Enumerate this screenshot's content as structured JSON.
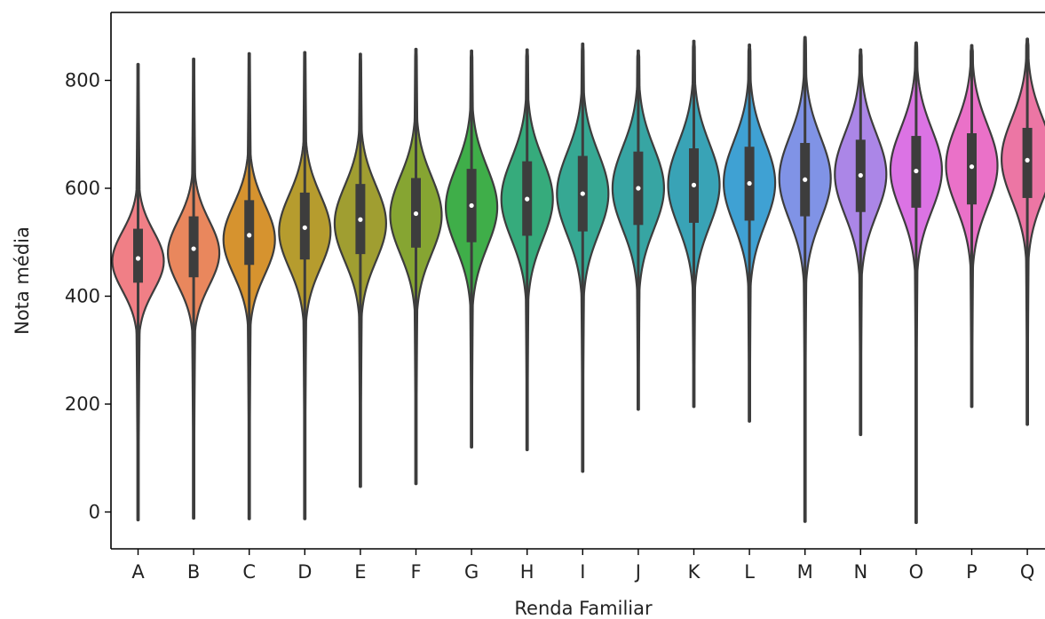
{
  "chart_data": {
    "type": "violin",
    "xlabel": "Renda Familiar",
    "ylabel": "Nota média",
    "ylim": [
      -70,
      920
    ],
    "yticks": [
      0,
      200,
      400,
      600,
      800
    ],
    "grid": false,
    "categories": [
      "A",
      "B",
      "C",
      "D",
      "E",
      "F",
      "G",
      "H",
      "I",
      "J",
      "K",
      "L",
      "M",
      "N",
      "O",
      "P",
      "Q"
    ],
    "colors": [
      "#f07f86",
      "#e9875d",
      "#d6932f",
      "#b69c2e",
      "#a09e31",
      "#86a532",
      "#3fae49",
      "#36ab7c",
      "#36a893",
      "#37a5a3",
      "#39a3b6",
      "#3fa1d3",
      "#8093e6",
      "#ab86e7",
      "#db73e4",
      "#ea71c8",
      "#ec76a4"
    ],
    "series": [
      {
        "name": "A",
        "min": -15,
        "q1": 425,
        "median": 470,
        "q3": 525,
        "max": 830,
        "mode": 465,
        "spread": 55
      },
      {
        "name": "B",
        "min": -12,
        "q1": 435,
        "median": 488,
        "q3": 548,
        "max": 840,
        "mode": 480,
        "spread": 60
      },
      {
        "name": "C",
        "min": -13,
        "q1": 458,
        "median": 513,
        "q3": 578,
        "max": 850,
        "mode": 505,
        "spread": 65
      },
      {
        "name": "D",
        "min": -13,
        "q1": 468,
        "median": 527,
        "q3": 592,
        "max": 852,
        "mode": 520,
        "spread": 68
      },
      {
        "name": "E",
        "min": 47,
        "q1": 478,
        "median": 542,
        "q3": 608,
        "max": 849,
        "mode": 535,
        "spread": 70
      },
      {
        "name": "F",
        "min": 52,
        "q1": 490,
        "median": 553,
        "q3": 619,
        "max": 858,
        "mode": 550,
        "spread": 72
      },
      {
        "name": "G",
        "min": 120,
        "q1": 500,
        "median": 568,
        "q3": 636,
        "max": 855,
        "mode": 565,
        "spread": 74
      },
      {
        "name": "H",
        "min": 115,
        "q1": 512,
        "median": 580,
        "q3": 650,
        "max": 857,
        "mode": 580,
        "spread": 75
      },
      {
        "name": "I",
        "min": 75,
        "q1": 520,
        "median": 590,
        "q3": 660,
        "max": 868,
        "mode": 590,
        "spread": 76
      },
      {
        "name": "J",
        "min": 190,
        "q1": 532,
        "median": 600,
        "q3": 668,
        "max": 855,
        "mode": 600,
        "spread": 76
      },
      {
        "name": "K",
        "min": 195,
        "q1": 536,
        "median": 606,
        "q3": 674,
        "max": 873,
        "mode": 606,
        "spread": 77
      },
      {
        "name": "L",
        "min": 168,
        "q1": 540,
        "median": 609,
        "q3": 677,
        "max": 866,
        "mode": 610,
        "spread": 77
      },
      {
        "name": "M",
        "min": -18,
        "q1": 548,
        "median": 616,
        "q3": 684,
        "max": 880,
        "mode": 618,
        "spread": 77
      },
      {
        "name": "N",
        "min": 143,
        "q1": 556,
        "median": 624,
        "q3": 690,
        "max": 857,
        "mode": 626,
        "spread": 76
      },
      {
        "name": "O",
        "min": -20,
        "q1": 564,
        "median": 632,
        "q3": 697,
        "max": 870,
        "mode": 634,
        "spread": 76
      },
      {
        "name": "P",
        "min": 195,
        "q1": 570,
        "median": 640,
        "q3": 702,
        "max": 865,
        "mode": 642,
        "spread": 76
      },
      {
        "name": "Q",
        "min": 162,
        "q1": 582,
        "median": 652,
        "q3": 712,
        "max": 877,
        "mode": 654,
        "spread": 75
      }
    ]
  }
}
